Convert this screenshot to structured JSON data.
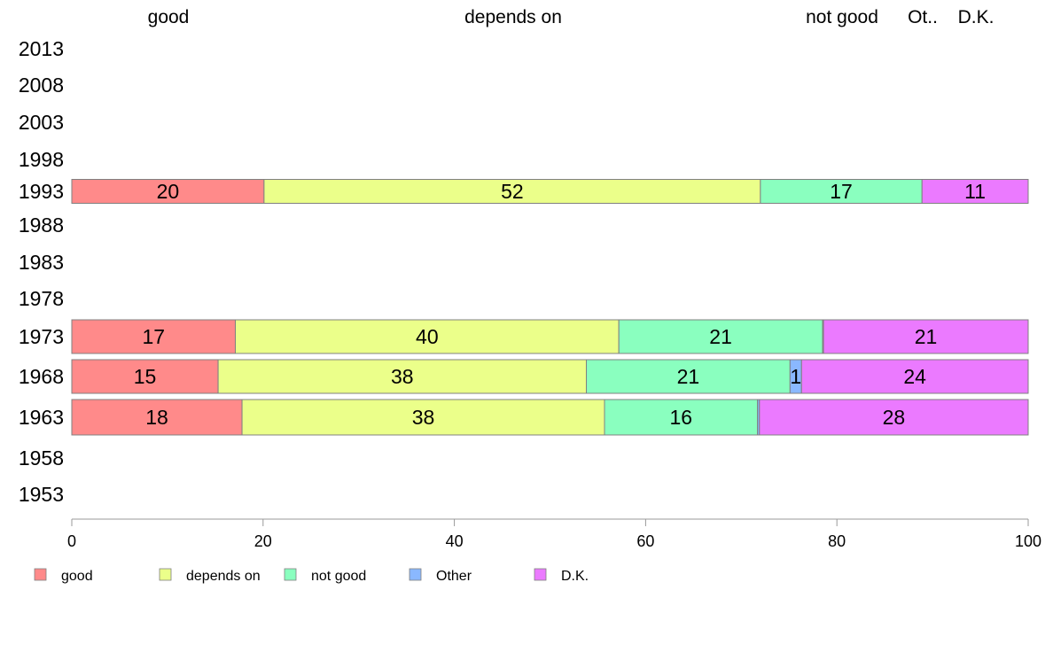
{
  "chart_data": {
    "type": "bar",
    "orientation": "horizontal",
    "stacked": true,
    "categories": [
      "2013",
      "2008",
      "2003",
      "1998",
      "1993",
      "1988",
      "1983",
      "1978",
      "1973",
      "1968",
      "1963",
      "1958",
      "1953"
    ],
    "series": [
      {
        "name": "good",
        "color": "#ff8a8a",
        "values": [
          null,
          null,
          null,
          null,
          20.1,
          null,
          null,
          null,
          17.1,
          15.3,
          17.8,
          null,
          null
        ],
        "labels": [
          "",
          "",
          "",
          "",
          "20",
          "",
          "",
          "",
          "17",
          "15",
          "18",
          "",
          ""
        ]
      },
      {
        "name": "depends on",
        "color": "#ebff8a",
        "values": [
          null,
          null,
          null,
          null,
          51.9,
          null,
          null,
          null,
          40.1,
          38.5,
          37.9,
          null,
          null
        ],
        "labels": [
          "",
          "",
          "",
          "",
          "52",
          "",
          "",
          "",
          "40",
          "38",
          "38",
          "",
          ""
        ]
      },
      {
        "name": "not good",
        "color": "#8affbf",
        "values": [
          null,
          null,
          null,
          null,
          16.9,
          null,
          null,
          null,
          21.3,
          21.3,
          16.0,
          null,
          null
        ],
        "labels": [
          "",
          "",
          "",
          "",
          "17",
          "",
          "",
          "",
          "21",
          "21",
          "16",
          "",
          ""
        ]
      },
      {
        "name": "Other",
        "color": "#8ab8ff",
        "values": [
          null,
          null,
          null,
          null,
          0,
          null,
          null,
          null,
          0.1,
          1.2,
          0.2,
          null,
          null
        ],
        "labels": [
          "",
          "",
          "",
          "",
          "",
          "",
          "",
          "",
          "",
          "1",
          "",
          "",
          ""
        ]
      },
      {
        "name": "D.K.",
        "color": "#eb7aff",
        "values": [
          null,
          null,
          null,
          null,
          11.1,
          null,
          null,
          null,
          21.4,
          23.7,
          28.1,
          null,
          null
        ],
        "labels": [
          "",
          "",
          "",
          "",
          "11",
          "",
          "",
          "",
          "21",
          "24",
          "28",
          "",
          ""
        ]
      }
    ],
    "top_labels": [
      "good",
      "depends on",
      "not good",
      "Ot..",
      "D.K."
    ],
    "xlim": [
      0,
      100
    ],
    "xticks": [
      "0",
      "20",
      "40",
      "60",
      "80",
      "100"
    ],
    "legend_position": "bottom-left",
    "grid": false,
    "bar_outline_color": "#808080"
  }
}
